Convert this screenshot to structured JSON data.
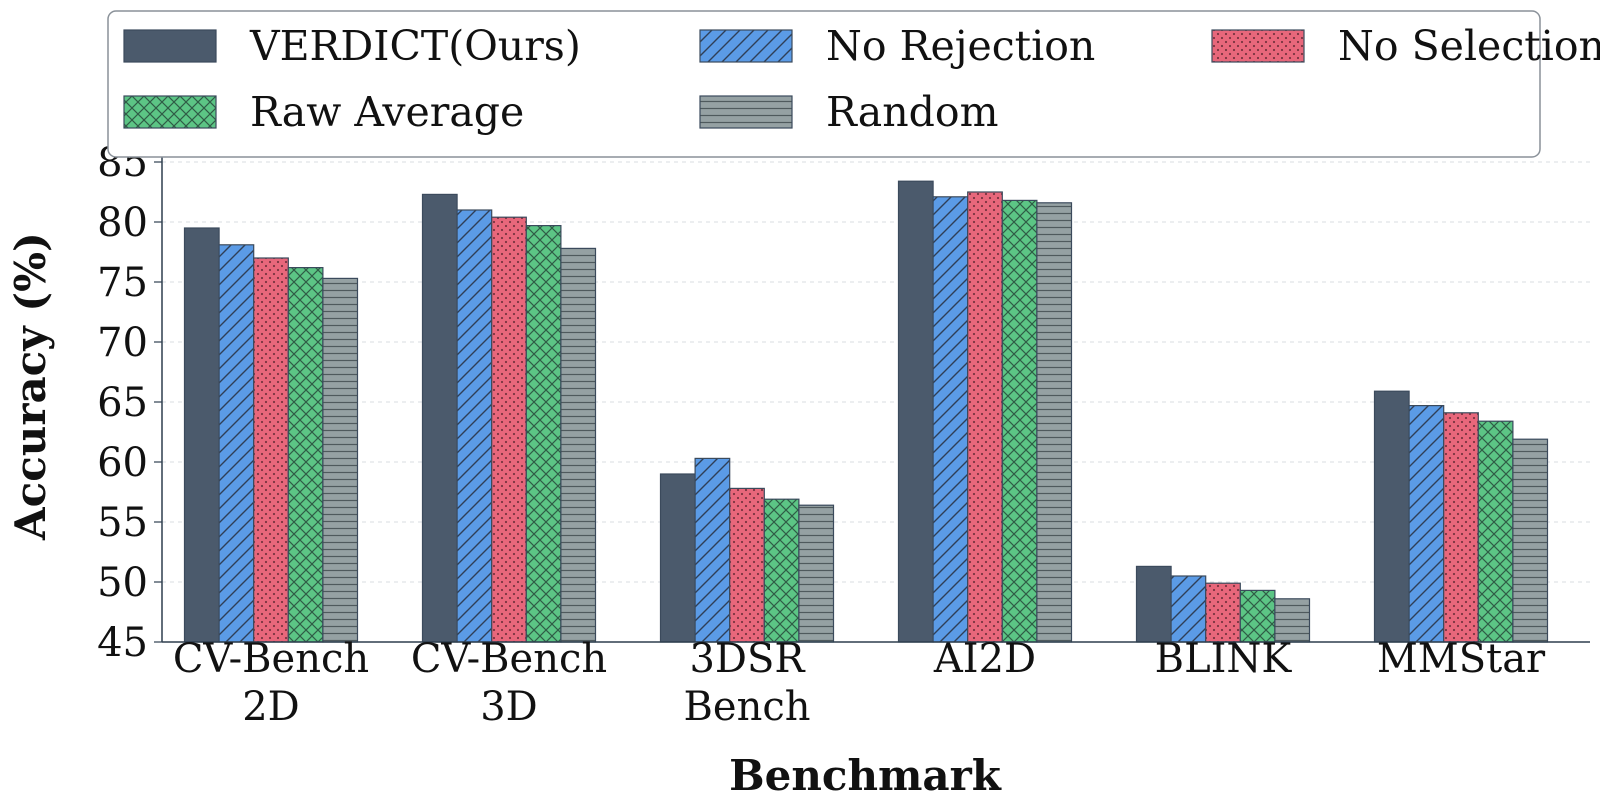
{
  "chart_data": {
    "type": "bar",
    "title": "",
    "xlabel": "Benchmark",
    "ylabel": "Accuracy (%)",
    "ylim": [
      45,
      86
    ],
    "yticks": [
      45,
      50,
      55,
      60,
      65,
      70,
      75,
      80,
      85
    ],
    "grid": "horizontal dashed",
    "legend_position": "top",
    "categories": [
      [
        "CV-Bench",
        "2D"
      ],
      [
        "CV-Bench",
        "3D"
      ],
      [
        "3DSR",
        "Bench"
      ],
      [
        "AI2D"
      ],
      [
        "BLINK"
      ],
      [
        "MMStar"
      ]
    ],
    "series": [
      {
        "name": "VERDICT(Ours)",
        "color": "#4b5a6c",
        "pattern": "solid",
        "values": [
          79.5,
          82.3,
          59.0,
          83.4,
          51.3,
          65.9
        ]
      },
      {
        "name": "No Rejection",
        "color": "#5b9be6",
        "pattern": "diagonal",
        "values": [
          78.1,
          81.0,
          60.3,
          82.1,
          50.5,
          64.7
        ]
      },
      {
        "name": "No Selection",
        "color": "#e8677b",
        "pattern": "dots",
        "values": [
          77.0,
          80.4,
          57.8,
          82.5,
          49.9,
          64.1
        ]
      },
      {
        "name": "Raw Average",
        "color": "#5cc585",
        "pattern": "crosshatch",
        "values": [
          76.2,
          79.7,
          56.9,
          81.8,
          49.3,
          63.4
        ]
      },
      {
        "name": "Random",
        "color": "#95a1a3",
        "pattern": "horizontal",
        "values": [
          75.3,
          77.8,
          56.4,
          81.6,
          48.6,
          61.9
        ]
      }
    ]
  }
}
